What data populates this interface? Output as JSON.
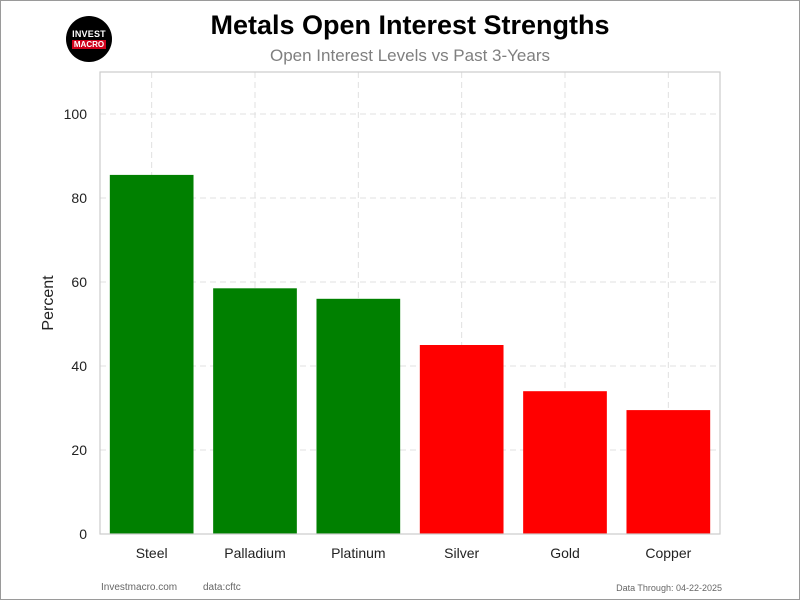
{
  "logo": {
    "line1": "INVEST",
    "line2": "MACRO"
  },
  "chart_data": {
    "type": "bar",
    "title": "Metals Open Interest Strengths",
    "subtitle": "Open Interest Levels vs Past 3-Years",
    "xlabel": "",
    "ylabel": "Percent",
    "ylim": [
      0,
      110
    ],
    "yticks": [
      0,
      20,
      40,
      60,
      80,
      100
    ],
    "categories": [
      "Steel",
      "Palladium",
      "Platinum",
      "Silver",
      "Gold",
      "Copper"
    ],
    "values": [
      85.5,
      58.5,
      56,
      45,
      34,
      29.5
    ],
    "colors": [
      "#008000",
      "#008000",
      "#008000",
      "#ff0000",
      "#ff0000",
      "#ff0000"
    ],
    "grid": true
  },
  "footer": {
    "source": "Investmacro.com",
    "data": "data:cftc",
    "through": "Data Through: 04-22-2025"
  }
}
